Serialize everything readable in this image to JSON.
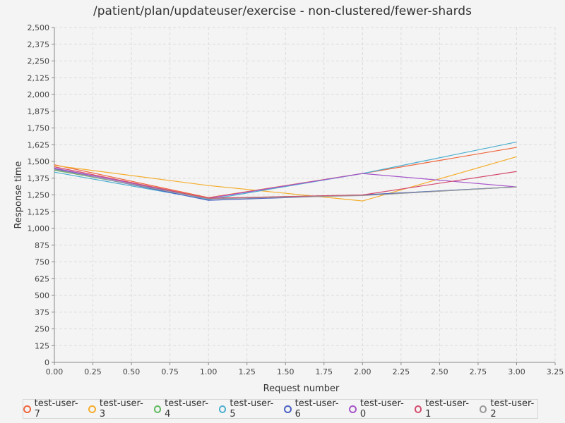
{
  "chart_data": {
    "type": "line",
    "title": "/patient/plan/updateuser/exercise - non-clustered/fewer-shards",
    "xlabel": "Request number",
    "ylabel": "Response time",
    "xlim": [
      0,
      3.25
    ],
    "ylim": [
      0,
      2500
    ],
    "x_ticks": [
      "0.00",
      "0.25",
      "0.50",
      "0.75",
      "1.00",
      "1.25",
      "1.50",
      "1.75",
      "2.00",
      "2.25",
      "2.50",
      "2.75",
      "3.00",
      "3.25"
    ],
    "y_ticks": [
      "0",
      "125",
      "250",
      "375",
      "500",
      "625",
      "750",
      "875",
      "1,000",
      "1,125",
      "1,250",
      "1,375",
      "1,500",
      "1,625",
      "1,750",
      "1,875",
      "2,000",
      "2,125",
      "2,250",
      "2,375",
      "2,500"
    ],
    "grid": true,
    "legend_position": "bottom",
    "x": [
      0,
      1,
      2,
      3
    ],
    "series": [
      {
        "name": "test-user-7",
        "color": "#f0663c",
        "values": [
          1475,
          1230,
          1410,
          1605
        ]
      },
      {
        "name": "test-user-3",
        "color": "#f5ad2b",
        "values": [
          1470,
          1320,
          1205,
          1535
        ]
      },
      {
        "name": "test-user-4",
        "color": "#5cb85c",
        "values": [
          1435,
          1225,
          1250,
          1310
        ]
      },
      {
        "name": "test-user-5",
        "color": "#4aaecf",
        "values": [
          1420,
          1215,
          1410,
          1645
        ]
      },
      {
        "name": "test-user-6",
        "color": "#4a62c5",
        "values": [
          1445,
          1210,
          1250,
          1310
        ]
      },
      {
        "name": "test-user-0",
        "color": "#a555c9",
        "values": [
          1450,
          1225,
          1410,
          1310
        ]
      },
      {
        "name": "test-user-1",
        "color": "#d44a6d",
        "values": [
          1460,
          1225,
          1250,
          1425
        ]
      },
      {
        "name": "test-user-2",
        "color": "#999999",
        "values": [
          1440,
          1220,
          1245,
          1310
        ]
      }
    ]
  }
}
